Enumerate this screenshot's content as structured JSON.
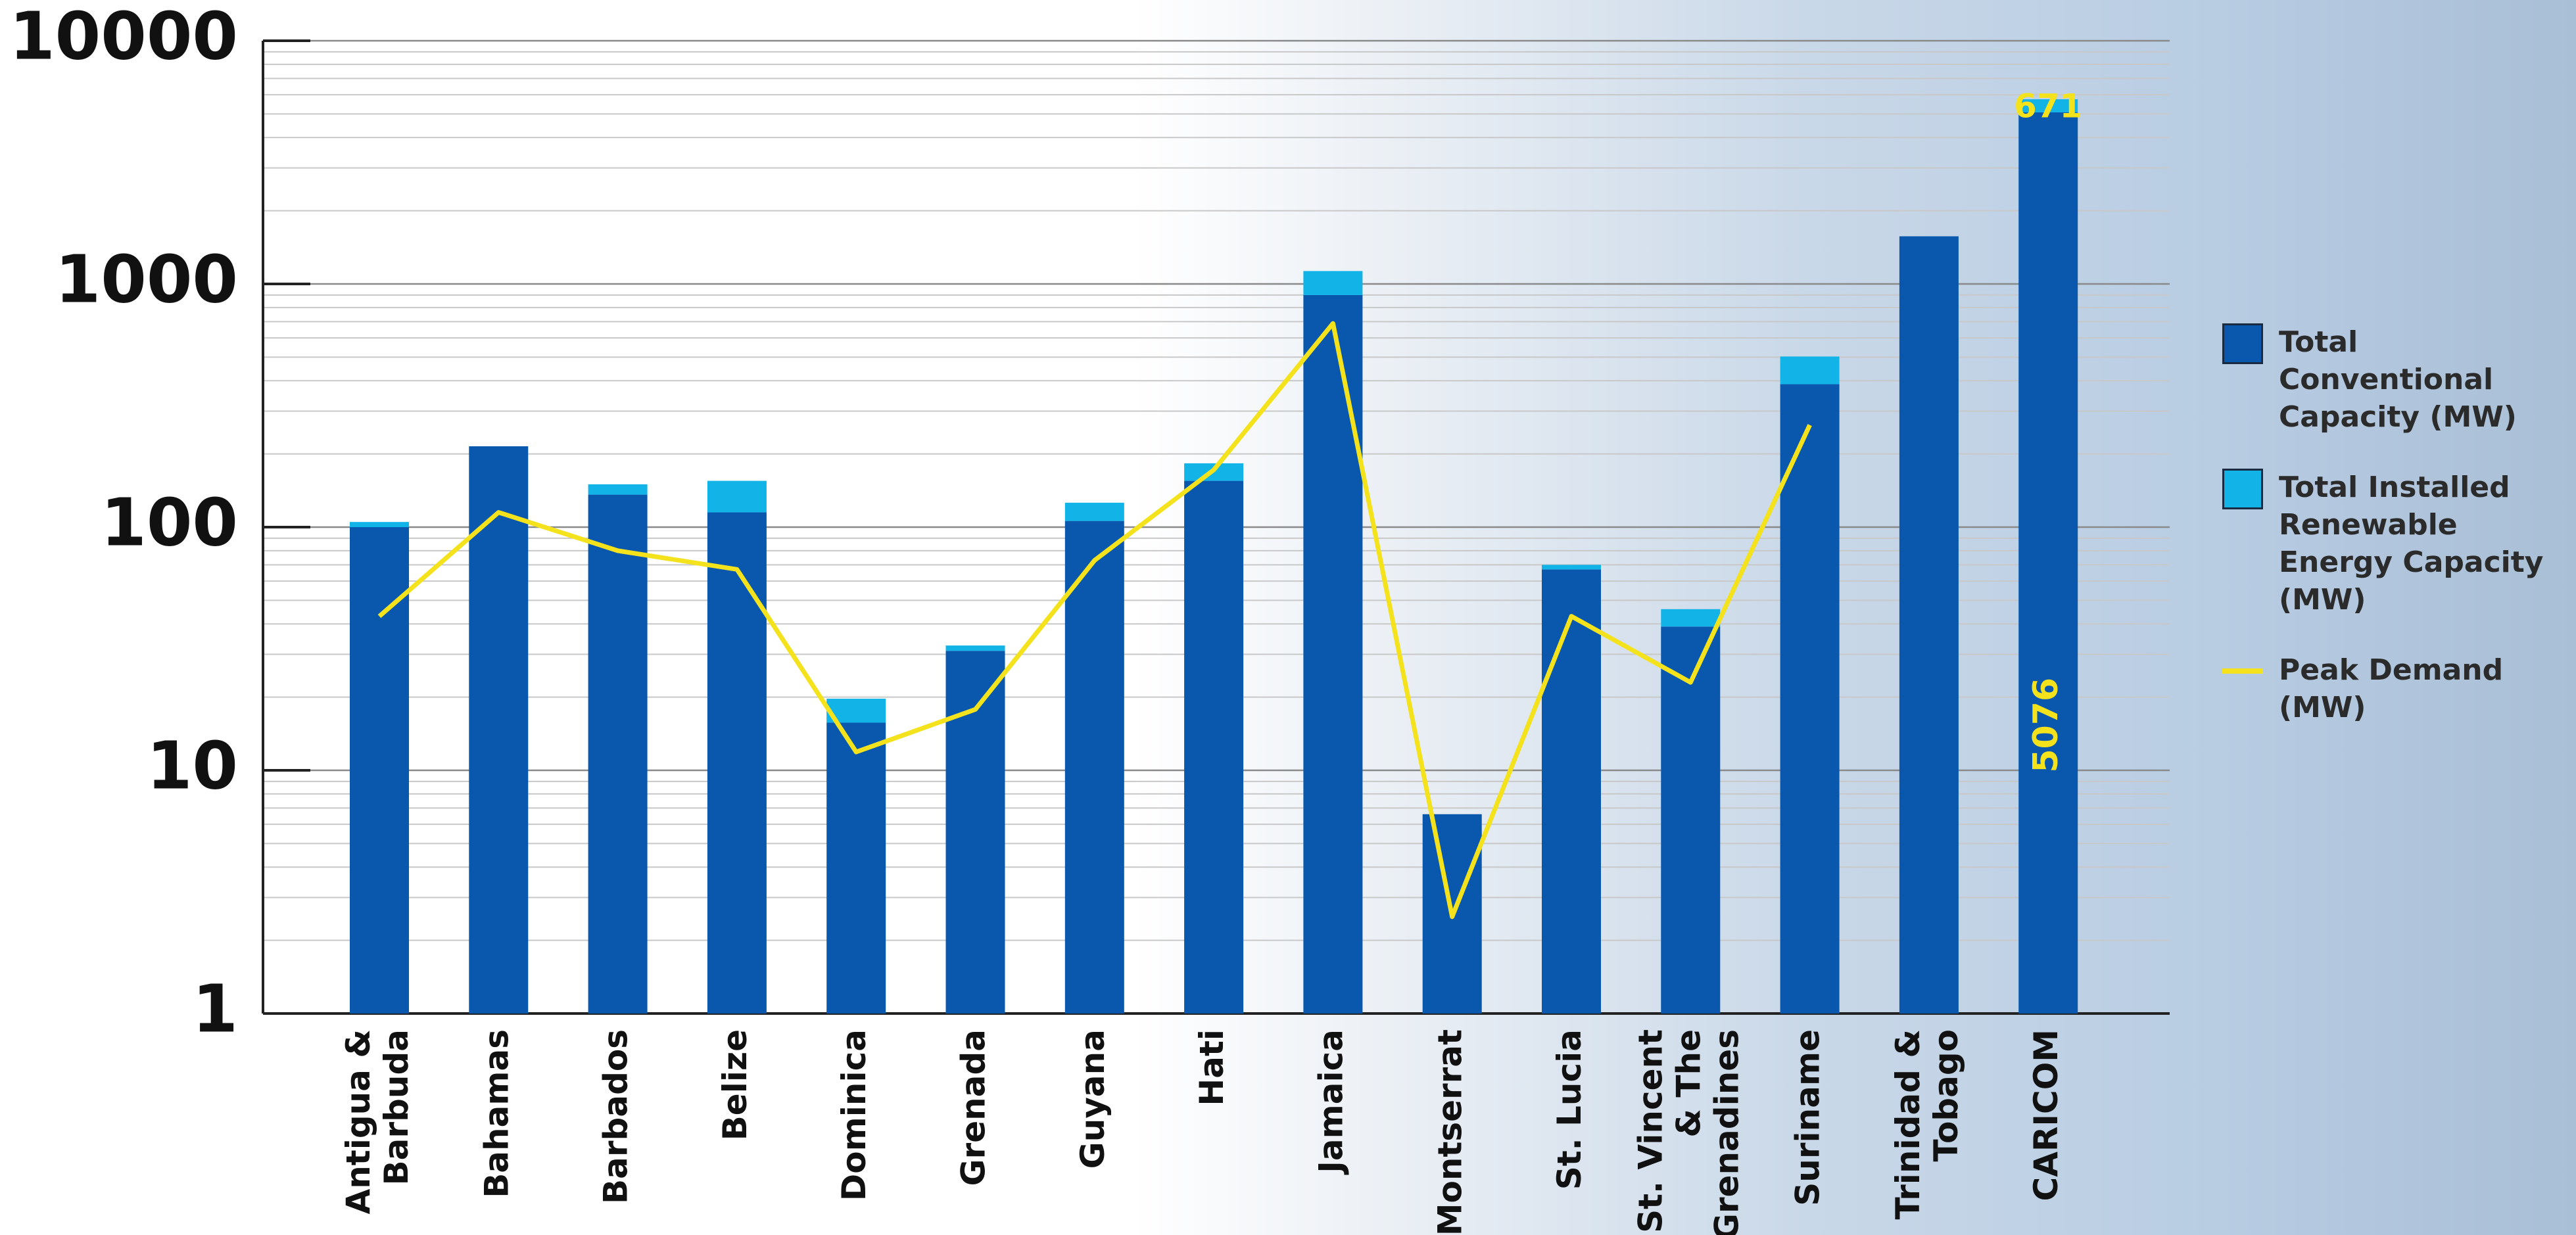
{
  "chart_data": {
    "type": "stacked_bar_line",
    "categories": [
      "Antigua &\nBarbuda",
      "Bahamas",
      "Barbados",
      "Belize",
      "Dominica",
      "Grenada",
      "Guyana",
      "Hati",
      "Jamaica",
      "Montserrat",
      "St. Lucia",
      "St. Vincent\n& The\nGrenadines",
      "Suriname",
      "Trinidad &\nTobago",
      "CARICOM"
    ],
    "series": [
      {
        "name": "Total Conventional Capacity (MW)",
        "color": "#0a58ae",
        "kind": "bar",
        "values": [
          100,
          215,
          136,
          115,
          15.7,
          31,
          106,
          155,
          900,
          6.6,
          67,
          39,
          387,
          1570,
          5076
        ]
      },
      {
        "name": "Total Installed Renewable Energy Capacity (MW)",
        "color": "#12b4e8",
        "kind": "bar",
        "values": [
          5,
          0,
          14,
          40,
          4,
          1.6,
          20,
          28,
          230,
          0,
          3,
          7,
          116,
          0,
          671
        ]
      },
      {
        "name": "Peak Demand (MW)",
        "color": "#f3e21c",
        "kind": "line",
        "values": [
          43,
          115,
          80,
          67,
          11.9,
          17.8,
          73,
          172,
          688,
          2.5,
          43,
          23,
          263,
          null,
          null
        ]
      }
    ],
    "ylim": [
      1,
      10000
    ],
    "yticks": [
      1,
      10,
      100,
      1000,
      10000
    ],
    "log_scale": true,
    "grid": true,
    "minor_grid": true
  }
}
